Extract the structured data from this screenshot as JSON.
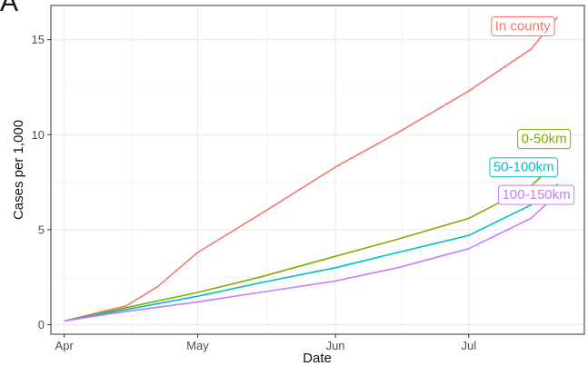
{
  "panel_label": "A",
  "colors": {
    "in_county": "#F8766D",
    "0_50km": "#7CAE00",
    "50_100km": "#00BFC4",
    "100_150km": "#C77CFF",
    "grid": "#ebebeb",
    "axis_text": "#4d4d4d"
  },
  "chart_data": {
    "type": "line",
    "title": "",
    "xlabel": "Date",
    "ylabel": "Cases per 1,000",
    "x_axis": {
      "type": "date",
      "range": [
        "2020-03-29",
        "2020-07-27"
      ],
      "ticks": [
        "2020-04-01",
        "2020-05-01",
        "2020-06-01",
        "2020-07-01"
      ],
      "tick_labels": [
        "Apr",
        "May",
        "Jun",
        "Jul"
      ]
    },
    "ylim": [
      -0.5,
      16.8
    ],
    "yticks": [
      0,
      5,
      10,
      15
    ],
    "grid": true,
    "legend": "direct labels at line ends",
    "series": [
      {
        "name": "In county",
        "color": "#F8766D",
        "x": [
          "2020-04-01",
          "2020-04-15",
          "2020-04-22",
          "2020-05-01",
          "2020-05-15",
          "2020-06-01",
          "2020-06-15",
          "2020-07-01",
          "2020-07-15",
          "2020-07-21"
        ],
        "y": [
          0.2,
          1.0,
          2.0,
          3.8,
          5.8,
          8.3,
          10.1,
          12.3,
          14.5,
          16.2
        ]
      },
      {
        "name": "0-50km",
        "color": "#7CAE00",
        "x": [
          "2020-04-01",
          "2020-04-15",
          "2020-05-01",
          "2020-05-15",
          "2020-06-01",
          "2020-06-15",
          "2020-07-01",
          "2020-07-15",
          "2020-07-21"
        ],
        "y": [
          0.2,
          0.9,
          1.7,
          2.5,
          3.6,
          4.5,
          5.6,
          7.3,
          8.6
        ]
      },
      {
        "name": "50-100km",
        "color": "#00BFC4",
        "x": [
          "2020-04-01",
          "2020-04-15",
          "2020-05-01",
          "2020-05-15",
          "2020-06-01",
          "2020-06-15",
          "2020-07-01",
          "2020-07-15",
          "2020-07-21"
        ],
        "y": [
          0.2,
          0.8,
          1.5,
          2.2,
          3.0,
          3.8,
          4.7,
          6.3,
          7.4
        ]
      },
      {
        "name": "100-150km",
        "color": "#C77CFF",
        "x": [
          "2020-04-01",
          "2020-04-15",
          "2020-05-01",
          "2020-05-15",
          "2020-06-01",
          "2020-06-15",
          "2020-07-01",
          "2020-07-15",
          "2020-07-21"
        ],
        "y": [
          0.2,
          0.7,
          1.2,
          1.7,
          2.3,
          3.0,
          4.0,
          5.6,
          6.9
        ]
      }
    ]
  }
}
